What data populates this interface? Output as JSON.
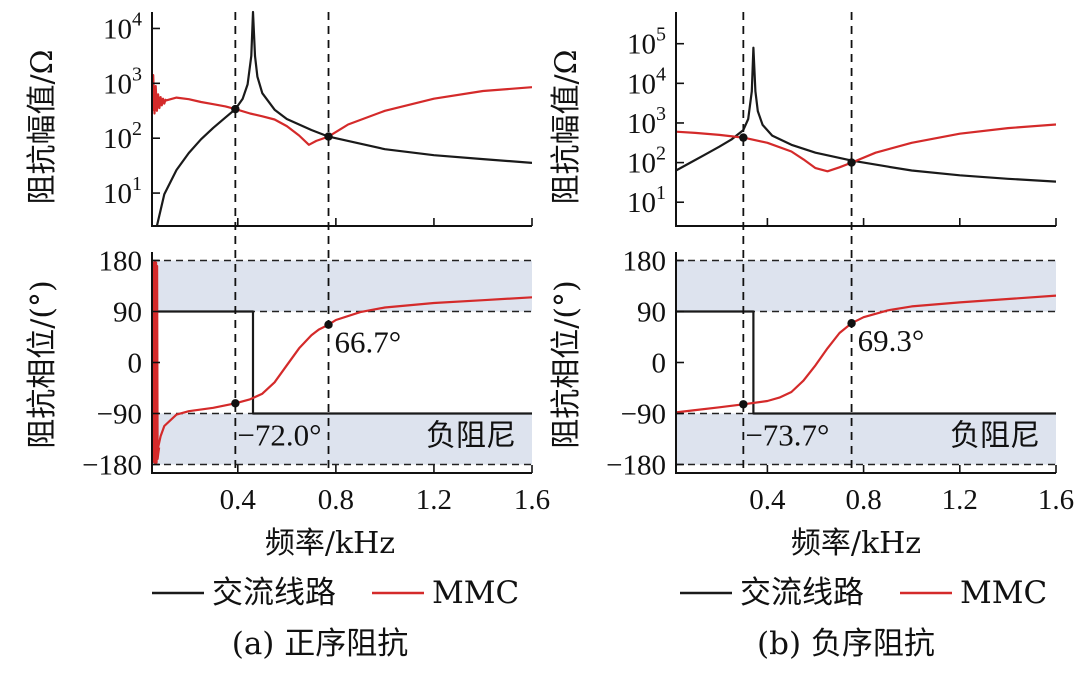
{
  "colors": {
    "ac_line": "#1a1a1a",
    "mmc": "#d42a2a",
    "band": "#dde3ee",
    "axis": "#111111"
  },
  "chart_data": [
    {
      "type": "line",
      "panel": "a",
      "caption": "(a) 正序阻抗",
      "xlabel": "频率/kHz",
      "xlim": [
        0.05,
        1.6
      ],
      "xticks": [
        "0.4",
        "0.8",
        "1.2",
        "1.6"
      ],
      "legend": [
        {
          "name": "交流线路",
          "color": "ac_line"
        },
        {
          "name": "MMC",
          "color": "mmc"
        }
      ],
      "magnitude": {
        "ylabel": "阻抗幅值/Ω",
        "yscale": "log",
        "ylim_log10": [
          0.4,
          4.3
        ],
        "yticks": [
          {
            "base": "10",
            "exp": "1"
          },
          {
            "base": "10",
            "exp": "2"
          },
          {
            "base": "10",
            "exp": "3"
          },
          {
            "base": "10",
            "exp": "4"
          }
        ],
        "series": [
          {
            "name": "交流线路",
            "color": "ac_line",
            "x": [
              0.07,
              0.1,
              0.15,
              0.2,
              0.25,
              0.3,
              0.35,
              0.39,
              0.42,
              0.44,
              0.455,
              0.462,
              0.47,
              0.48,
              0.5,
              0.55,
              0.6,
              0.7,
              0.77,
              0.9,
              1.0,
              1.2,
              1.4,
              1.6
            ],
            "y_log10": [
              0.4,
              0.98,
              1.42,
              1.73,
              1.98,
              2.19,
              2.38,
              2.53,
              2.72,
              2.98,
              3.5,
              4.3,
              3.5,
              3.12,
              2.82,
              2.52,
              2.35,
              2.15,
              2.03,
              1.9,
              1.8,
              1.69,
              1.62,
              1.55
            ]
          },
          {
            "name": "MMC",
            "color": "mmc",
            "x": [
              0.05,
              0.07,
              0.1,
              0.15,
              0.2,
              0.25,
              0.3,
              0.35,
              0.39,
              0.45,
              0.5,
              0.55,
              0.6,
              0.65,
              0.69,
              0.72,
              0.77,
              0.85,
              1.0,
              1.2,
              1.4,
              1.6
            ],
            "y_log10": [
              2.5,
              2.62,
              2.68,
              2.74,
              2.71,
              2.66,
              2.62,
              2.58,
              2.53,
              2.45,
              2.4,
              2.34,
              2.22,
              2.05,
              1.88,
              1.95,
              2.03,
              2.25,
              2.5,
              2.72,
              2.86,
              2.93
            ]
          },
          {
            "name": "MMC-resonance",
            "color": "mmc",
            "x": [
              0.05,
              0.055,
              0.06,
              0.065,
              0.07,
              0.075,
              0.08,
              0.085,
              0.09,
              0.095,
              0.1,
              0.105,
              0.11
            ],
            "y_log10": [
              2.5,
              3.15,
              2.45,
              2.95,
              2.5,
              2.8,
              2.55,
              2.75,
              2.6,
              2.72,
              2.63,
              2.7,
              2.68
            ]
          }
        ],
        "markers": [
          {
            "x": 0.39,
            "y_log10": 2.53
          },
          {
            "x": 0.77,
            "y_log10": 2.03
          }
        ]
      },
      "phase": {
        "ylabel": "阻抗相位/(°)",
        "ylim": [
          -195,
          195
        ],
        "yticks": [
          "180",
          "90",
          "0",
          "−90",
          "−180"
        ],
        "ytick_values": [
          180,
          90,
          0,
          -90,
          -180
        ],
        "negative_damping_bands": [
          [
            90,
            180
          ],
          [
            -180,
            -90
          ]
        ],
        "band_label": "负阻尼",
        "series": [
          {
            "name": "交流线路",
            "color": "ac_line",
            "x": [
              0.05,
              0.462,
              0.462,
              1.6
            ],
            "y": [
              90,
              90,
              -90,
              -90
            ]
          },
          {
            "name": "MMC",
            "color": "mmc",
            "x": [
              0.065,
              0.075,
              0.085,
              0.1,
              0.15,
              0.2,
              0.3,
              0.39,
              0.45,
              0.5,
              0.55,
              0.6,
              0.65,
              0.7,
              0.73,
              0.77,
              0.8,
              0.9,
              1.0,
              1.2,
              1.4,
              1.6
            ],
            "y": [
              -170,
              -150,
              -130,
              -112,
              -92,
              -86,
              -80,
              -72,
              -65,
              -55,
              -35,
              -5,
              25,
              48,
              58,
              66.7,
              75,
              89,
              97,
              105,
              110,
              115
            ]
          },
          {
            "name": "MMC-oscillation",
            "color": "mmc",
            "x": [
              0.05,
              0.055,
              0.058,
              0.061,
              0.064,
              0.066,
              0.068,
              0.07,
              0.072,
              0.075,
              0.078
            ],
            "y": [
              140,
              175,
              -175,
              178,
              -178,
              176,
              -176,
              170,
              -170,
              -160,
              -150
            ]
          }
        ],
        "markers": [
          {
            "x": 0.39,
            "y": -72
          },
          {
            "x": 0.77,
            "y": 66.7
          }
        ],
        "annotations": [
          {
            "text": "66.7°",
            "x": 0.77,
            "y": 66.7,
            "anchor": "upper"
          },
          {
            "text": "−72.0°",
            "x": 0.39,
            "y": -72,
            "anchor": "lower"
          }
        ]
      },
      "vlines": [
        0.39,
        0.77
      ]
    },
    {
      "type": "line",
      "panel": "b",
      "caption": "(b) 负序阻抗",
      "xlabel": "频率/kHz",
      "xlim": [
        0.02,
        1.6
      ],
      "xticks": [
        "0.4",
        "0.8",
        "1.2",
        "1.6"
      ],
      "legend": [
        {
          "name": "交流线路",
          "color": "ac_line"
        },
        {
          "name": "MMC",
          "color": "mmc"
        }
      ],
      "magnitude": {
        "ylabel": "阻抗幅值/Ω",
        "yscale": "log",
        "ylim_log10": [
          0.4,
          5.8
        ],
        "yticks": [
          {
            "base": "10",
            "exp": "1"
          },
          {
            "base": "10",
            "exp": "2"
          },
          {
            "base": "10",
            "exp": "3"
          },
          {
            "base": "10",
            "exp": "4"
          },
          {
            "base": "10",
            "exp": "5"
          }
        ],
        "series": [
          {
            "name": "交流线路",
            "color": "ac_line",
            "x": [
              0.02,
              0.08,
              0.14,
              0.2,
              0.25,
              0.3,
              0.32,
              0.335,
              0.342,
              0.35,
              0.36,
              0.38,
              0.42,
              0.5,
              0.6,
              0.75,
              0.9,
              1.0,
              1.2,
              1.4,
              1.6
            ],
            "y_log10": [
              1.8,
              2.0,
              2.2,
              2.4,
              2.58,
              2.82,
              3.1,
              3.8,
              4.9,
              3.8,
              3.3,
              2.95,
              2.68,
              2.45,
              2.25,
              2.05,
              1.9,
              1.8,
              1.68,
              1.59,
              1.52
            ]
          },
          {
            "name": "MMC",
            "color": "mmc",
            "x": [
              0.02,
              0.1,
              0.2,
              0.3,
              0.4,
              0.5,
              0.55,
              0.6,
              0.65,
              0.7,
              0.75,
              0.85,
              1.0,
              1.2,
              1.4,
              1.6
            ],
            "y_log10": [
              2.78,
              2.75,
              2.7,
              2.63,
              2.5,
              2.28,
              2.08,
              1.86,
              1.78,
              1.88,
              2.0,
              2.25,
              2.5,
              2.73,
              2.87,
              2.96
            ]
          }
        ],
        "markers": [
          {
            "x": 0.3,
            "y_log10": 2.63
          },
          {
            "x": 0.75,
            "y_log10": 2.0
          }
        ]
      },
      "phase": {
        "ylabel": "阻抗相位/(°)",
        "ylim": [
          -195,
          195
        ],
        "yticks": [
          "180",
          "90",
          "0",
          "−90",
          "−180"
        ],
        "ytick_values": [
          180,
          90,
          0,
          -90,
          -180
        ],
        "negative_damping_bands": [
          [
            90,
            180
          ],
          [
            -180,
            -90
          ]
        ],
        "band_label": "负阻尼",
        "series": [
          {
            "name": "交流线路",
            "color": "ac_line",
            "x": [
              0.02,
              0.342,
              0.342,
              1.6
            ],
            "y": [
              90,
              90,
              -90,
              -90
            ]
          },
          {
            "name": "MMC",
            "color": "mmc",
            "x": [
              0.02,
              0.1,
              0.2,
              0.3,
              0.4,
              0.45,
              0.5,
              0.55,
              0.6,
              0.65,
              0.7,
              0.75,
              0.8,
              0.9,
              1.0,
              1.2,
              1.4,
              1.6
            ],
            "y": [
              -88,
              -84,
              -79,
              -73.7,
              -68,
              -62,
              -52,
              -32,
              -5,
              25,
              52,
              69.3,
              80,
              92,
              99,
              106,
              112,
              118
            ]
          }
        ],
        "markers": [
          {
            "x": 0.3,
            "y": -73.7
          },
          {
            "x": 0.75,
            "y": 69.3
          }
        ],
        "annotations": [
          {
            "text": "69.3°",
            "x": 0.75,
            "y": 69.3,
            "anchor": "upper"
          },
          {
            "text": "−73.7°",
            "x": 0.3,
            "y": -73.7,
            "anchor": "lower"
          }
        ]
      },
      "vlines": [
        0.3,
        0.75
      ]
    }
  ]
}
